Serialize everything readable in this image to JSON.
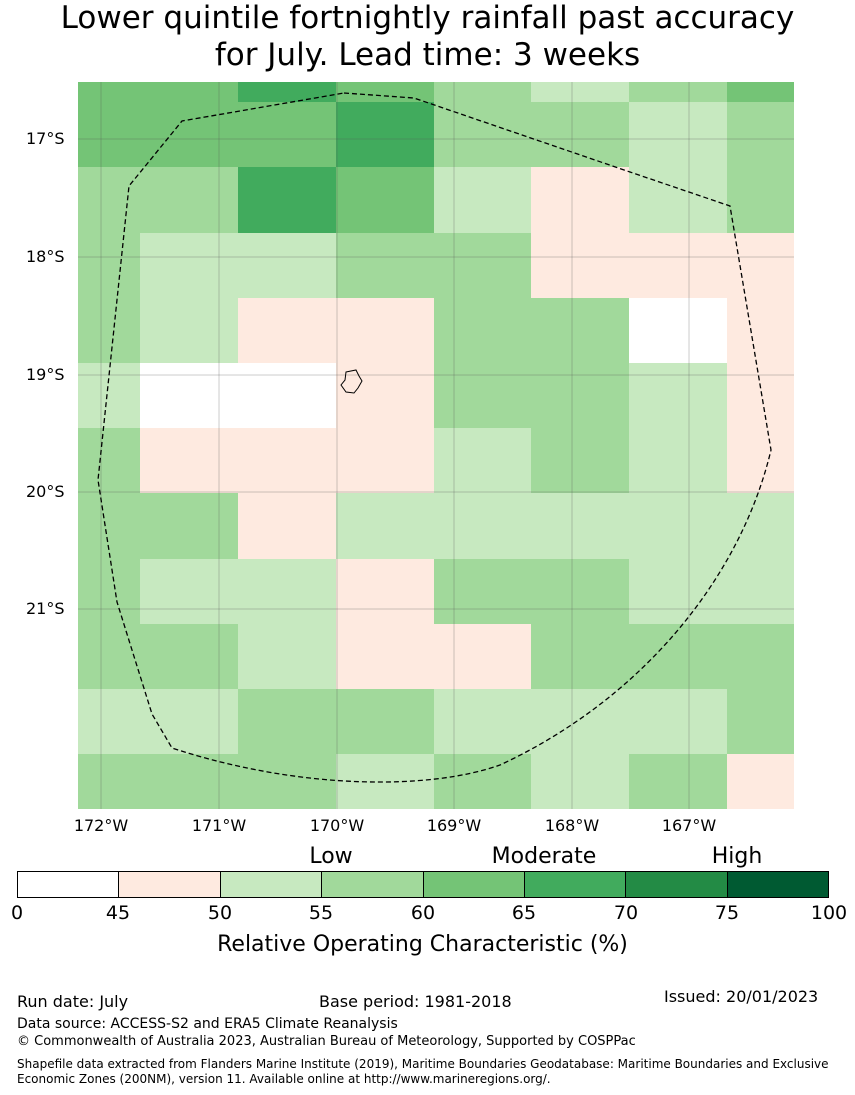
{
  "title": {
    "line1": "Lower quintile fortnightly rainfall past accuracy",
    "line2": "for July. Lead time: 3 weeks"
  },
  "map": {
    "lon_labels": [
      "172°W",
      "171°W",
      "170°W",
      "169°W",
      "168°W",
      "167°W"
    ],
    "lat_labels": [
      "17°S",
      "18°S",
      "19°S",
      "20°S",
      "21°S"
    ],
    "grid_values": [
      [
        62,
        62,
        67,
        62,
        58,
        53,
        58,
        62
      ],
      [
        62,
        62,
        62,
        67,
        58,
        58,
        53,
        58
      ],
      [
        58,
        58,
        67,
        62,
        53,
        47,
        53,
        58
      ],
      [
        58,
        53,
        53,
        58,
        58,
        47,
        47,
        47
      ],
      [
        58,
        53,
        47,
        47,
        58,
        58,
        40,
        47
      ],
      [
        53,
        40,
        40,
        47,
        58,
        58,
        53,
        47
      ],
      [
        58,
        47,
        47,
        47,
        53,
        58,
        53,
        47
      ],
      [
        58,
        58,
        47,
        53,
        53,
        53,
        53,
        53
      ],
      [
        58,
        53,
        53,
        47,
        58,
        58,
        53,
        53
      ],
      [
        58,
        58,
        53,
        47,
        47,
        58,
        58,
        58
      ],
      [
        53,
        53,
        58,
        58,
        53,
        53,
        53,
        58
      ],
      [
        58,
        58,
        58,
        53,
        58,
        53,
        58,
        47
      ]
    ],
    "grid_note_colors": {
      "0-45": "#ffffff",
      "45-50": "#feeae0",
      "50-55": "#c7e9c0",
      "55-60": "#a1d99b",
      "60-65": "#74c476",
      "65-70": "#41ab5d",
      "70-75": "#238b45",
      "75-100": "#005a32"
    }
  },
  "colorbar": {
    "categories": [
      {
        "label": "Low"
      },
      {
        "label": "Moderate"
      },
      {
        "label": "High"
      }
    ],
    "ticks": [
      "0",
      "45",
      "50",
      "55",
      "60",
      "65",
      "70",
      "75",
      "100"
    ],
    "colors": [
      "#ffffff",
      "#feeae0",
      "#c7e9c0",
      "#a1d99b",
      "#74c476",
      "#41ab5d",
      "#238b45",
      "#005a32"
    ],
    "label": "Relative Operating Characteristic (%)"
  },
  "footer": {
    "run_date": "Run date: July",
    "base_period": "Base period: 1981-2018",
    "issued": "Issued: 20/01/2023",
    "data_source": "Data source: ACCESS-S2 and ERA5 Climate Reanalysis",
    "copyright": "© Commonwealth of Australia 2023, Australian Bureau of Meteorology, Supported by COSPPac",
    "shapefile": "Shapefile data extracted from Flanders Marine Institute (2019), Maritime Boundaries Geodatabase: Maritime Boundaries and Exclusive Economic Zones (200NM), version 11. Available online at http://www.marineregions.org/."
  }
}
